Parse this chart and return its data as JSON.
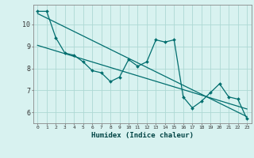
{
  "title": "",
  "xlabel": "Humidex (Indice chaleur)",
  "bg_color": "#d8f2f0",
  "grid_color": "#aed8d4",
  "line_color": "#006e6e",
  "xlim": [
    -0.5,
    23.5
  ],
  "ylim": [
    5.5,
    10.9
  ],
  "xticks": [
    0,
    1,
    2,
    3,
    4,
    5,
    6,
    7,
    8,
    9,
    10,
    11,
    12,
    13,
    14,
    15,
    16,
    17,
    18,
    19,
    20,
    21,
    22,
    23
  ],
  "yticks": [
    6,
    7,
    8,
    9,
    10
  ],
  "series": [
    [
      0,
      10.6
    ],
    [
      1,
      10.6
    ],
    [
      2,
      9.4
    ],
    [
      3,
      8.7
    ],
    [
      4,
      8.6
    ],
    [
      5,
      8.3
    ],
    [
      6,
      7.9
    ],
    [
      7,
      7.8
    ],
    [
      8,
      7.4
    ],
    [
      9,
      7.6
    ],
    [
      10,
      8.4
    ],
    [
      11,
      8.1
    ],
    [
      12,
      8.3
    ],
    [
      13,
      9.3
    ],
    [
      14,
      9.2
    ],
    [
      15,
      9.3
    ],
    [
      16,
      6.7
    ],
    [
      17,
      6.2
    ],
    [
      18,
      6.5
    ],
    [
      19,
      6.9
    ],
    [
      20,
      7.3
    ],
    [
      21,
      6.7
    ],
    [
      22,
      6.6
    ],
    [
      23,
      5.7
    ]
  ],
  "trend_line": [
    [
      0,
      10.5
    ],
    [
      23,
      5.8
    ]
  ],
  "trend_line2": [
    [
      0,
      9.05
    ],
    [
      23,
      6.15
    ]
  ]
}
